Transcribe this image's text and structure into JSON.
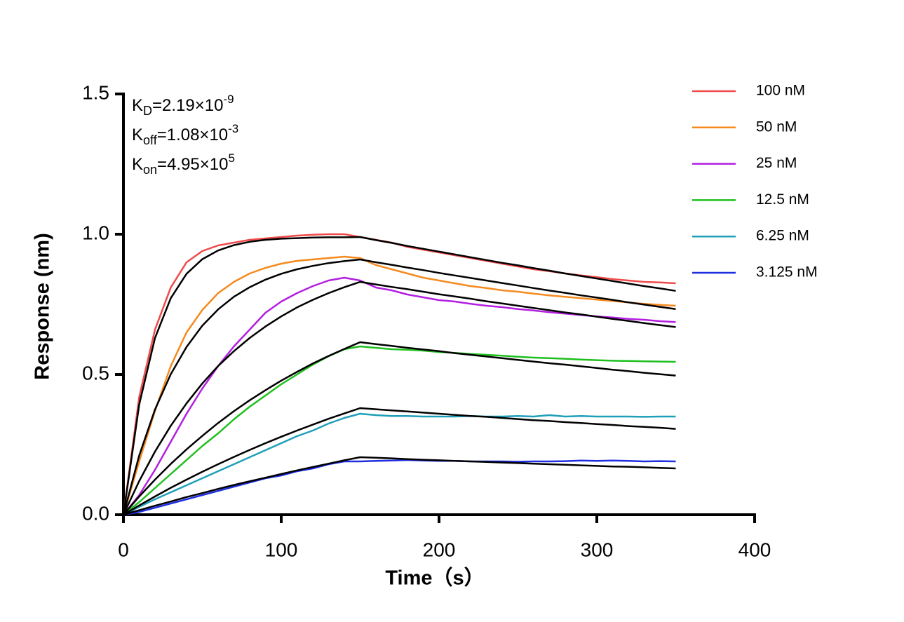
{
  "chart_data": {
    "type": "line",
    "xlabel": "Time（s）",
    "ylabel": "Response (nm)",
    "annotations": [
      {
        "symbol": "K",
        "subscript": "D",
        "text": "=2.19×10",
        "exponent": "-9"
      },
      {
        "symbol": "K",
        "subscript": "off",
        "text": "=1.08×10",
        "exponent": "-3"
      },
      {
        "symbol": "K",
        "subscript": "on",
        "text": "=4.95×10",
        "exponent": "5"
      }
    ],
    "x": [
      0,
      10,
      20,
      30,
      40,
      50,
      60,
      70,
      80,
      90,
      100,
      110,
      120,
      130,
      140,
      150,
      160,
      170,
      180,
      190,
      200,
      210,
      220,
      230,
      240,
      250,
      260,
      270,
      280,
      290,
      300,
      310,
      320,
      330,
      340,
      350
    ],
    "xlim": [
      0,
      400
    ],
    "xticks": [
      0,
      100,
      200,
      300,
      400
    ],
    "ylim": [
      0,
      1.5
    ],
    "yticks": [
      {
        "value": 0,
        "label": "0.0"
      },
      0.5,
      {
        "value": 1,
        "label": "1.0"
      },
      1.5
    ],
    "legend": "upper right",
    "series": [
      {
        "name": "100 nM",
        "color": "#f04b4b",
        "values": [
          0,
          0.42,
          0.66,
          0.81,
          0.9,
          0.94,
          0.96,
          0.97,
          0.98,
          0.985,
          0.99,
          0.995,
          0.998,
          1.0,
          1.0,
          0.99,
          0.98,
          0.97,
          0.955,
          0.945,
          0.935,
          0.925,
          0.915,
          0.905,
          0.895,
          0.885,
          0.875,
          0.868,
          0.86,
          0.853,
          0.847,
          0.84,
          0.835,
          0.83,
          0.828,
          0.825
        ]
      },
      {
        "name": "50 nM",
        "color": "#f58a1f",
        "values": [
          0,
          0.19,
          0.37,
          0.53,
          0.65,
          0.73,
          0.79,
          0.83,
          0.86,
          0.88,
          0.895,
          0.905,
          0.91,
          0.915,
          0.92,
          0.915,
          0.89,
          0.875,
          0.86,
          0.845,
          0.835,
          0.825,
          0.815,
          0.808,
          0.8,
          0.795,
          0.788,
          0.782,
          0.777,
          0.772,
          0.767,
          0.762,
          0.757,
          0.752,
          0.748,
          0.745
        ]
      },
      {
        "name": "25 nM",
        "color": "#b31fe0",
        "values": [
          0,
          0.07,
          0.16,
          0.26,
          0.36,
          0.45,
          0.53,
          0.6,
          0.66,
          0.72,
          0.76,
          0.79,
          0.815,
          0.835,
          0.845,
          0.835,
          0.81,
          0.8,
          0.785,
          0.775,
          0.765,
          0.76,
          0.752,
          0.745,
          0.74,
          0.733,
          0.728,
          0.722,
          0.717,
          0.712,
          0.707,
          0.703,
          0.698,
          0.695,
          0.69,
          0.687
        ]
      },
      {
        "name": "12.5 nM",
        "color": "#1fbf1f",
        "values": [
          0,
          0.045,
          0.095,
          0.145,
          0.195,
          0.245,
          0.29,
          0.34,
          0.385,
          0.425,
          0.465,
          0.5,
          0.535,
          0.565,
          0.59,
          0.6,
          0.595,
          0.59,
          0.588,
          0.585,
          0.58,
          0.577,
          0.573,
          0.57,
          0.567,
          0.563,
          0.56,
          0.558,
          0.556,
          0.553,
          0.551,
          0.549,
          0.548,
          0.547,
          0.546,
          0.545
        ]
      },
      {
        "name": "6.25 nM",
        "color": "#1f9fb8",
        "values": [
          0,
          0.028,
          0.055,
          0.08,
          0.105,
          0.13,
          0.155,
          0.18,
          0.205,
          0.23,
          0.255,
          0.28,
          0.3,
          0.325,
          0.345,
          0.36,
          0.355,
          0.352,
          0.352,
          0.35,
          0.35,
          0.35,
          0.352,
          0.35,
          0.35,
          0.352,
          0.35,
          0.355,
          0.35,
          0.352,
          0.35,
          0.35,
          0.35,
          0.349,
          0.35,
          0.35
        ]
      },
      {
        "name": "3.125 nM",
        "color": "#1f2fdf",
        "values": [
          0,
          0.01,
          0.025,
          0.04,
          0.055,
          0.07,
          0.085,
          0.1,
          0.115,
          0.13,
          0.14,
          0.155,
          0.165,
          0.18,
          0.19,
          0.19,
          0.192,
          0.193,
          0.195,
          0.193,
          0.192,
          0.192,
          0.19,
          0.19,
          0.19,
          0.189,
          0.19,
          0.19,
          0.191,
          0.193,
          0.192,
          0.193,
          0.192,
          0.19,
          0.191,
          0.19
        ]
      }
    ],
    "fits": [
      {
        "color": "#000000",
        "values": [
          0,
          0.393,
          0.63,
          0.772,
          0.859,
          0.911,
          0.942,
          0.961,
          0.973,
          0.98,
          0.984,
          0.986,
          0.988,
          0.989,
          0.989,
          0.99,
          0.979,
          0.969,
          0.958,
          0.948,
          0.938,
          0.928,
          0.918,
          0.908,
          0.898,
          0.889,
          0.879,
          0.87,
          0.86,
          0.851,
          0.842,
          0.833,
          0.824,
          0.815,
          0.807,
          0.798
        ]
      },
      {
        "color": "#000000",
        "values": [
          0,
          0.211,
          0.375,
          0.501,
          0.598,
          0.674,
          0.732,
          0.777,
          0.811,
          0.838,
          0.859,
          0.875,
          0.887,
          0.897,
          0.904,
          0.91,
          0.9,
          0.891,
          0.881,
          0.872,
          0.862,
          0.853,
          0.844,
          0.835,
          0.826,
          0.817,
          0.808,
          0.799,
          0.791,
          0.782,
          0.774,
          0.766,
          0.757,
          0.749,
          0.741,
          0.733
        ]
      },
      {
        "color": "#000000",
        "values": [
          0,
          0.12,
          0.225,
          0.317,
          0.397,
          0.468,
          0.53,
          0.583,
          0.63,
          0.671,
          0.707,
          0.739,
          0.766,
          0.79,
          0.811,
          0.83,
          0.821,
          0.812,
          0.804,
          0.795,
          0.786,
          0.778,
          0.77,
          0.761,
          0.753,
          0.745,
          0.737,
          0.729,
          0.721,
          0.714,
          0.706,
          0.698,
          0.691,
          0.683,
          0.676,
          0.669
        ]
      },
      {
        "color": "#000000",
        "values": [
          0,
          0.065,
          0.125,
          0.181,
          0.233,
          0.281,
          0.327,
          0.369,
          0.408,
          0.444,
          0.478,
          0.509,
          0.539,
          0.566,
          0.591,
          0.615,
          0.608,
          0.602,
          0.595,
          0.589,
          0.583,
          0.576,
          0.57,
          0.564,
          0.558,
          0.552,
          0.546,
          0.54,
          0.535,
          0.529,
          0.523,
          0.517,
          0.512,
          0.506,
          0.501,
          0.496
        ]
      },
      {
        "color": "#000000",
        "values": [
          0,
          0.033,
          0.065,
          0.096,
          0.125,
          0.153,
          0.18,
          0.206,
          0.231,
          0.255,
          0.278,
          0.3,
          0.321,
          0.342,
          0.361,
          0.38,
          0.376,
          0.372,
          0.368,
          0.364,
          0.36,
          0.356,
          0.352,
          0.349,
          0.345,
          0.341,
          0.337,
          0.334,
          0.33,
          0.327,
          0.323,
          0.32,
          0.316,
          0.313,
          0.31,
          0.306
        ]
      },
      {
        "color": "#000000",
        "values": [
          0,
          0.016,
          0.032,
          0.047,
          0.063,
          0.077,
          0.092,
          0.106,
          0.119,
          0.132,
          0.145,
          0.158,
          0.17,
          0.182,
          0.194,
          0.205,
          0.203,
          0.201,
          0.198,
          0.196,
          0.194,
          0.192,
          0.19,
          0.188,
          0.186,
          0.184,
          0.182,
          0.18,
          0.178,
          0.176,
          0.174,
          0.172,
          0.171,
          0.169,
          0.167,
          0.165
        ]
      }
    ]
  }
}
